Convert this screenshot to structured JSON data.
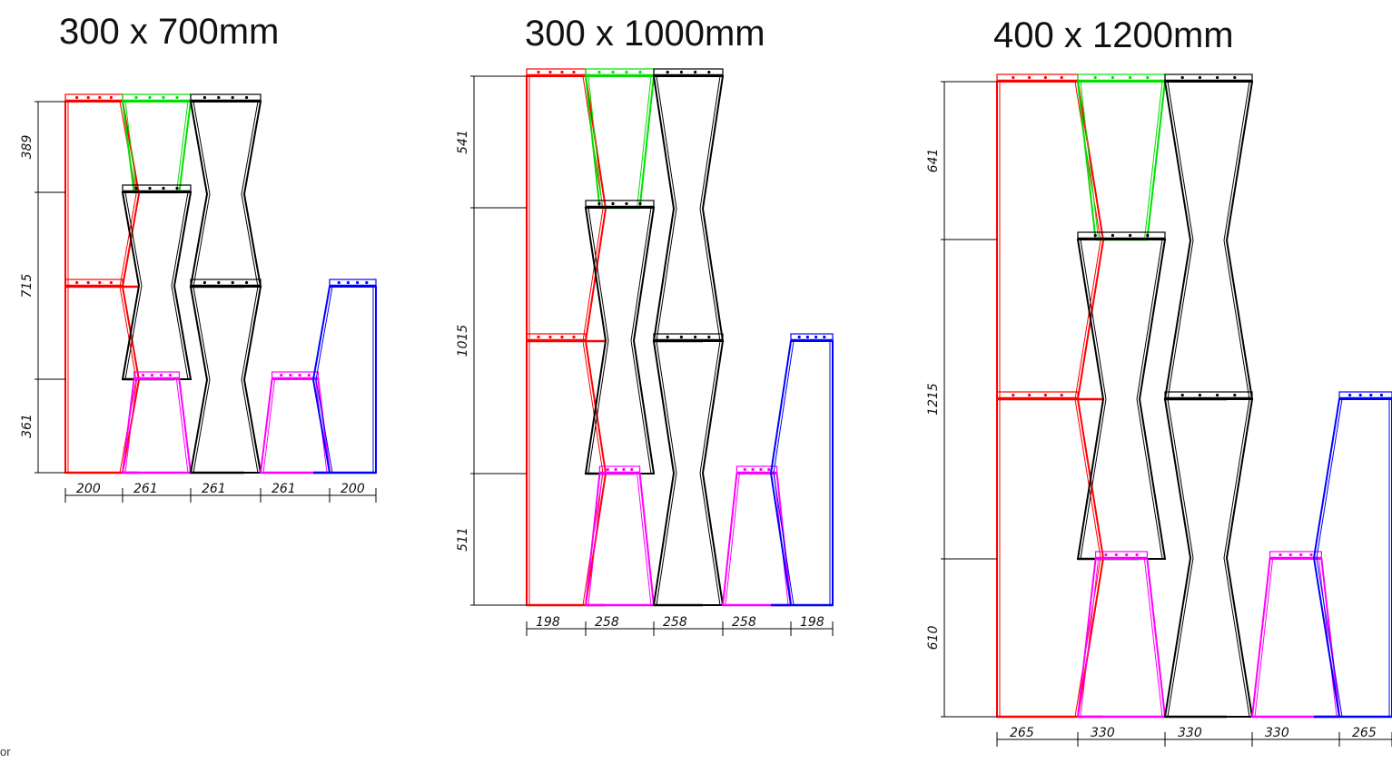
{
  "colors": {
    "red": "#ff0000",
    "green": "#00e000",
    "black": "#000000",
    "magenta": "#ff00ff",
    "blue": "#0000ff",
    "dimension_line": "#000000"
  },
  "footer_fragment": "or",
  "diagrams": [
    {
      "title": "300 x 700mm",
      "height_dimensions": [
        "389",
        "715",
        "361"
      ],
      "width_dimensions": [
        "200",
        "261",
        "261",
        "261",
        "200"
      ]
    },
    {
      "title": "300 x 1000mm",
      "height_dimensions": [
        "541",
        "1015",
        "511"
      ],
      "width_dimensions": [
        "198",
        "258",
        "258",
        "258",
        "198"
      ]
    },
    {
      "title": "400 x 1200mm",
      "height_dimensions": [
        "641",
        "1215",
        "610"
      ],
      "width_dimensions": [
        "265",
        "330",
        "330",
        "330",
        "265"
      ]
    }
  ]
}
